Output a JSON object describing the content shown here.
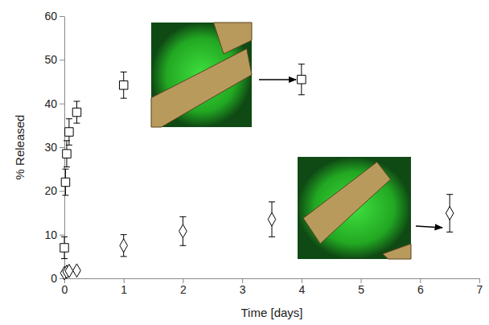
{
  "chart_data": {
    "type": "scatter",
    "x_label": "Time [days]",
    "y_label": "% Released",
    "xlim": [
      0,
      7
    ],
    "xticks": [
      0,
      1,
      2,
      3,
      4,
      5,
      6,
      7
    ],
    "ylim": [
      0,
      60
    ],
    "yticks": [
      0,
      10,
      20,
      30,
      40,
      50,
      60
    ],
    "series": [
      {
        "x": [
          0,
          0.02,
          0.04,
          0.08,
          0.21,
          1,
          4
        ],
        "values": [
          7,
          22,
          28.5,
          33.5,
          38,
          44.2,
          45.5
        ],
        "errors": [
          2.5,
          3,
          3,
          3,
          2.5,
          3,
          3.5
        ],
        "marker": "square",
        "color": "#000000"
      },
      {
        "x": [
          0,
          0.04,
          0.08,
          0.21,
          1,
          2,
          3.5,
          6.5
        ],
        "values": [
          1.2,
          1.5,
          1.7,
          1.8,
          7.5,
          10.8,
          13.5,
          14.9
        ],
        "errors": [
          0.3,
          0.3,
          0.3,
          0.3,
          2.5,
          3.3,
          4,
          4.3
        ],
        "marker": "diamond",
        "color": "#000000"
      }
    ]
  }
}
